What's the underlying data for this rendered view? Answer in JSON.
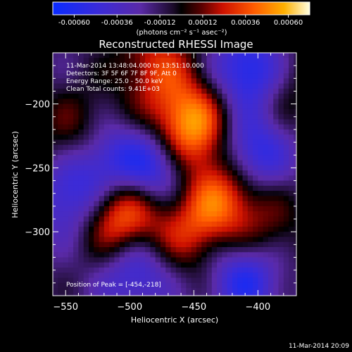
{
  "chart_data": {
    "type": "heatmap",
    "title": "Reconstructed RHESSI Image",
    "xlabel": "Heliocentric X (arcsec)",
    "ylabel": "Heliocentric Y (arcsec)",
    "xlim": [
      -560,
      -370
    ],
    "ylim": [
      -350,
      -160
    ],
    "xticks": [
      -550,
      -500,
      -450,
      -400
    ],
    "yticks": [
      -300,
      -250,
      -200
    ],
    "colorbar": {
      "ticks": [
        "-0.00060",
        "-0.00036",
        "-0.00012",
        "0.00012",
        "0.00036",
        "0.00060"
      ],
      "unit_label": "(photons cm⁻² s⁻¹ asec⁻²)",
      "range": [
        -0.0006,
        0.0006
      ],
      "colormap": "blue-purple-black-red-orange-yellow-white"
    },
    "annotations": [
      "11-Mar-2014 13:48:04.000 to 13:51:10.000",
      "Detectors: 3F 5F 6F 7F 8F 9F, Att 0",
      "Energy Range: 25.0 - 50.0 keV",
      "Clean   Total counts: 9.41E+03"
    ],
    "peak_label": "Position of Peak = [-454,-218]",
    "peak_position": [
      -454,
      -218
    ],
    "bright_sources": [
      {
        "x": -454,
        "y": -218,
        "value": 0.0006
      },
      {
        "x": -508,
        "y": -287,
        "value": 0.00055
      },
      {
        "x": -425,
        "y": -270,
        "value": 0.00042
      },
      {
        "x": -455,
        "y": -300,
        "value": 0.0003
      },
      {
        "x": -540,
        "y": -225,
        "value": 0.00026
      },
      {
        "x": -480,
        "y": -168,
        "value": 0.00032
      },
      {
        "x": -380,
        "y": -185,
        "value": 0.00022
      },
      {
        "x": -392,
        "y": -300,
        "value": 0.00018
      }
    ],
    "dark_regions": [
      {
        "x": -405,
        "y": -175,
        "value": -0.0005
      },
      {
        "x": -520,
        "y": -245,
        "value": -0.0004
      },
      {
        "x": -480,
        "y": -250,
        "value": -0.00045
      },
      {
        "x": -405,
        "y": -240,
        "value": -0.00045
      },
      {
        "x": -410,
        "y": -335,
        "value": -0.0004
      },
      {
        "x": -495,
        "y": -330,
        "value": -0.00035
      },
      {
        "x": -545,
        "y": -275,
        "value": -0.00035
      }
    ]
  },
  "footer": {
    "timestamp": "11-Mar-2014 20:09"
  }
}
